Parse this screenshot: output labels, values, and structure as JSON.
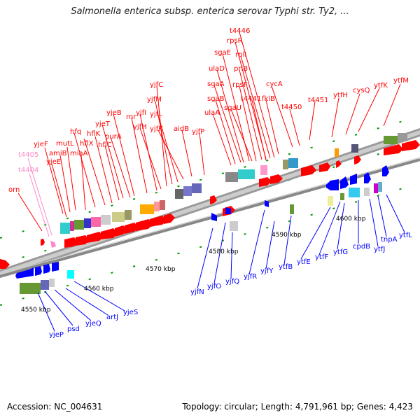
{
  "title": "Salmonella enterica subsp. enterica serovar Typhi str. Ty2, ...",
  "footer": {
    "accession": "Accession: NC_004631",
    "summary": "Topology: circular; Length: 4,791,961 bp; Genes: 4,423"
  },
  "colors": {
    "forward": "#ff0000",
    "reverse": "#0000ff",
    "trna": "#ff88cc",
    "backbone": "#888888",
    "tick": "#009900"
  },
  "scale_labels": [
    "4550 kbp",
    "4560 kbp",
    "4570 kbp",
    "4580 kbp",
    "4590 kbp",
    "4600 kbp"
  ],
  "genes_forward": [
    "orn",
    "yjeF",
    "yjeE",
    "amiB",
    "mutL",
    "miaA",
    "hfq",
    "hflX",
    "hflK",
    "hflC",
    "yjeT",
    "purA",
    "yjeB",
    "rnr",
    "yjfI",
    "yjfH",
    "yjfC",
    "yjfM",
    "yjfL",
    "yjfK",
    "aidB",
    "yjfP",
    "ulaA",
    "sgaB",
    "sgaA",
    "ulaD",
    "sgaE",
    "sgaU",
    "rpsF",
    "priB",
    "rpsR",
    "rplI",
    "t4446",
    "t4441",
    "fklB",
    "cycA",
    "t4450",
    "t4451",
    "ytfH",
    "cysQ",
    "ytfK",
    "ytfM"
  ],
  "genes_trna": [
    "t4405",
    "t4404"
  ],
  "genes_reverse": [
    "yjeP",
    "psd",
    "yjeQ",
    "artJ",
    "yjeS",
    "yjfN",
    "yjfO",
    "yjfQ",
    "yjfR",
    "yjfY",
    "ytfB",
    "ytfE",
    "ytfF",
    "ytfG",
    "cpdB",
    "ytfJ",
    "tnpA",
    "ytfL"
  ]
}
